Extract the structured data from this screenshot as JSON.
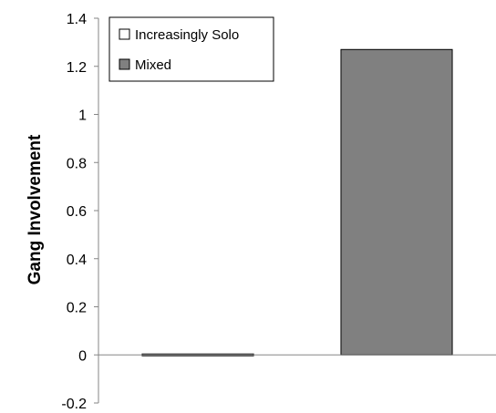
{
  "chart_data": {
    "type": "bar",
    "categories": [
      "Increasingly Solo",
      "Mixed"
    ],
    "series": [
      {
        "name": "Increasingly Solo",
        "values": [
          -0.005,
          null
        ],
        "color": "#ffffff"
      },
      {
        "name": "Mixed",
        "values": [
          null,
          1.27
        ],
        "color": "#808080"
      }
    ],
    "xlabel": "",
    "ylabel": "Gang Involvement",
    "ylim": [
      -0.2,
      1.4
    ],
    "yticks": [
      -0.2,
      0,
      0.2,
      0.4,
      0.6,
      0.8,
      1,
      1.2,
      1.4
    ],
    "ytick_labels": [
      "-0.2",
      "0",
      "0.2",
      "0.4",
      "0.6",
      "0.8",
      "1",
      "1.2",
      "1.4"
    ],
    "grid": false,
    "legend": {
      "position": "top-left",
      "entries": [
        {
          "label": "Increasingly Solo",
          "color": "#ffffff"
        },
        {
          "label": "Mixed",
          "color": "#808080"
        }
      ]
    }
  }
}
